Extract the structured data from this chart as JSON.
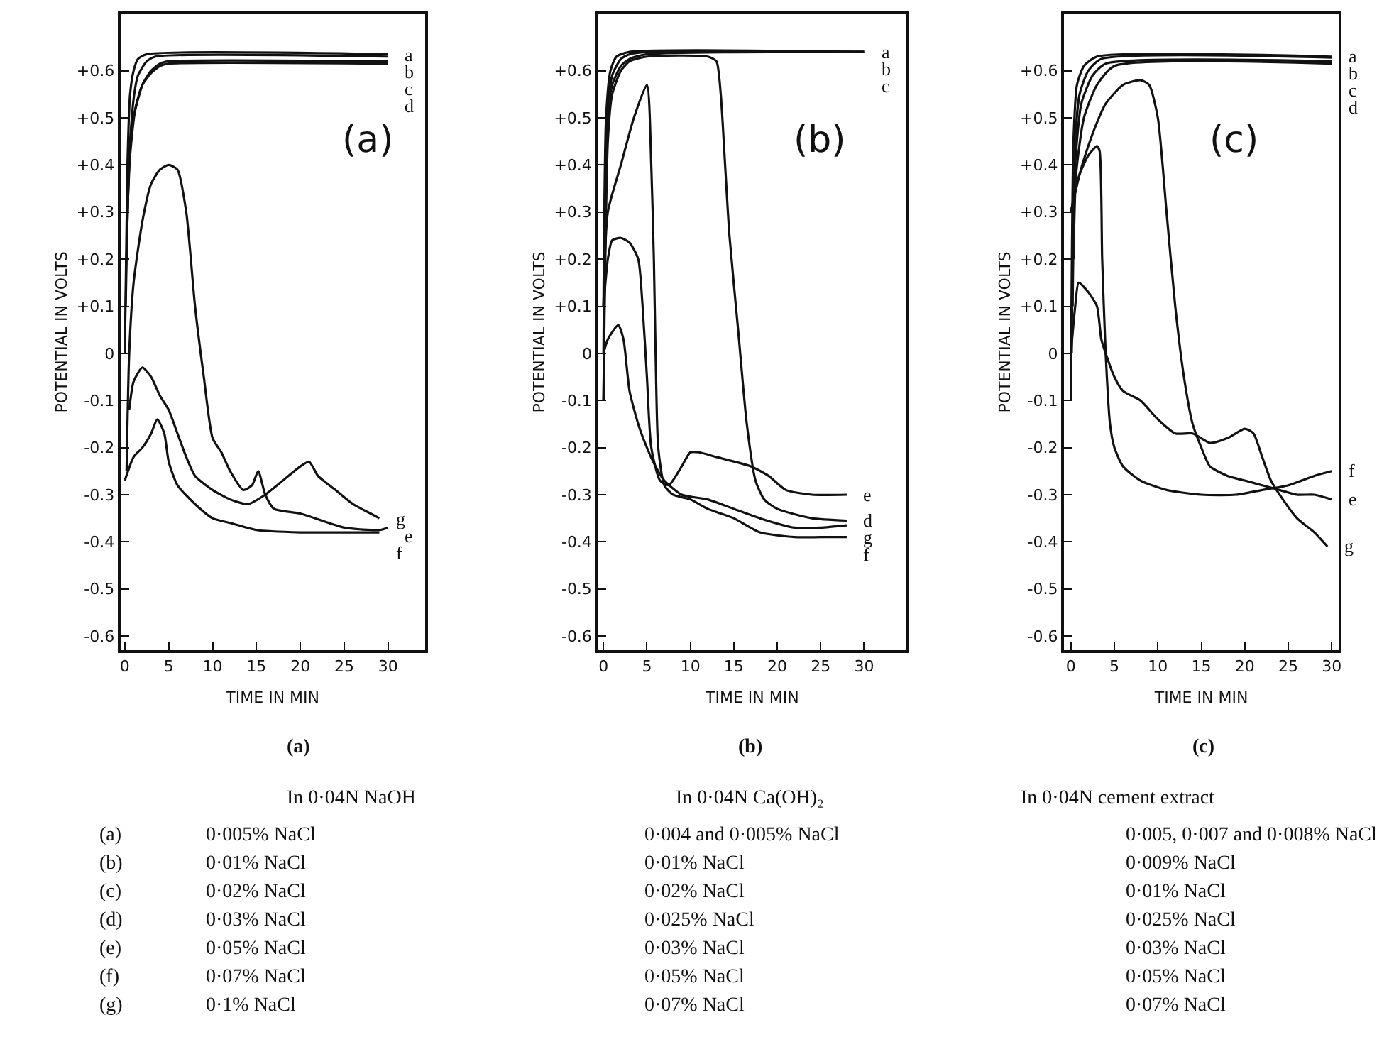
{
  "chart_data": [
    {
      "type": "line",
      "title": "(a)",
      "xlabel": "TIME IN MIN",
      "ylabel": "POTENTIAL IN VOLTS",
      "xlim": [
        -0.5,
        34.2
      ],
      "ylim": [
        -0.63,
        0.72
      ],
      "xticks": [
        0,
        5,
        10,
        15,
        20,
        25,
        30
      ],
      "yticks": [
        {
          "value": 0.6,
          "label": "+0.6"
        },
        {
          "value": 0.5,
          "label": "+0.5"
        },
        {
          "value": 0.4,
          "label": "+0.4"
        },
        {
          "value": 0.3,
          "label": "+0.3"
        },
        {
          "value": 0.2,
          "label": "+0.2"
        },
        {
          "value": 0.1,
          "label": "+0.1"
        },
        0,
        -0.1,
        -0.2,
        -0.3,
        -0.4,
        -0.5,
        -0.6
      ],
      "legend": false,
      "marker": "none",
      "line_style": "solid",
      "series": [
        {
          "name": "a",
          "color": "#111111",
          "x": [
            0,
            0.3,
            0.6,
            1,
            1.5,
            2.5,
            30
          ],
          "values": [
            0.0,
            0.4,
            0.55,
            0.6,
            0.625,
            0.635,
            0.635
          ]
        },
        {
          "name": "b",
          "color": "#111111",
          "x": [
            0.1,
            0.5,
            1,
            1.5,
            2.5,
            3.5,
            30
          ],
          "values": [
            0.1,
            0.42,
            0.54,
            0.59,
            0.62,
            0.63,
            0.63
          ]
        },
        {
          "name": "c",
          "color": "#111111",
          "x": [
            0.2,
            0.5,
            1,
            2,
            3,
            4,
            5,
            30
          ],
          "values": [
            0.2,
            0.4,
            0.5,
            0.57,
            0.6,
            0.615,
            0.62,
            0.62
          ]
        },
        {
          "name": "d",
          "color": "#111111",
          "x": [
            0.3,
            0.6,
            1.2,
            2,
            3,
            4,
            5,
            30
          ],
          "values": [
            0.3,
            0.42,
            0.52,
            0.57,
            0.595,
            0.61,
            0.615,
            0.615
          ]
        },
        {
          "name": "e",
          "color": "#111111",
          "x": [
            0.2,
            0.5,
            1,
            2,
            3,
            4,
            5,
            6,
            7,
            8,
            9,
            10,
            11,
            12,
            13.5,
            14.5,
            15.2,
            16,
            17,
            20,
            25,
            29,
            30
          ],
          "values": [
            -0.25,
            0,
            0.15,
            0.28,
            0.36,
            0.39,
            0.4,
            0.39,
            0.3,
            0.1,
            -0.05,
            -0.18,
            -0.21,
            -0.25,
            -0.29,
            -0.28,
            -0.25,
            -0.3,
            -0.33,
            -0.34,
            -0.37,
            -0.375,
            -0.37
          ]
        },
        {
          "name": "f",
          "color": "#111111",
          "x": [
            0,
            1,
            2,
            3,
            3.7,
            4.5,
            5,
            6,
            8,
            10,
            12,
            15,
            20,
            25,
            29
          ],
          "values": [
            -0.27,
            -0.22,
            -0.2,
            -0.17,
            -0.14,
            -0.17,
            -0.23,
            -0.28,
            -0.32,
            -0.35,
            -0.36,
            -0.375,
            -0.38,
            -0.38,
            -0.38
          ]
        },
        {
          "name": "g",
          "color": "#111111",
          "x": [
            0.5,
            1,
            2,
            3,
            4,
            5,
            6,
            7,
            8,
            10,
            12,
            14,
            16,
            18,
            20,
            21,
            22,
            24,
            26,
            28,
            29
          ],
          "values": [
            -0.12,
            -0.06,
            -0.03,
            -0.05,
            -0.09,
            -0.12,
            -0.17,
            -0.22,
            -0.26,
            -0.29,
            -0.31,
            -0.32,
            -0.3,
            -0.27,
            -0.24,
            -0.23,
            -0.26,
            -0.29,
            -0.32,
            -0.34,
            -0.35
          ]
        }
      ],
      "annotations": [
        "(a)",
        "In 0·04N NaOH",
        "0·005% NaCl",
        "0·01% NaCl",
        "0·02% NaCl",
        "0·03% NaCl",
        "0·05% NaCl",
        "0·07% NaCl",
        "0·1% NaCl",
        "(a)",
        "(b)",
        "(c)",
        "(d)",
        "(e)",
        "(f)",
        "(g)"
      ]
    },
    {
      "type": "line",
      "title": "(b)",
      "xlabel": "TIME IN MIN",
      "ylabel": "POTENTIAL IN VOLTS",
      "xlim": [
        -0.65,
        34.9
      ],
      "ylim": [
        -0.63,
        0.72
      ],
      "xticks": [
        0,
        5,
        10,
        15,
        20,
        25,
        30
      ],
      "yticks": [
        {
          "value": 0.6,
          "label": "+0.6"
        },
        {
          "value": 0.5,
          "label": "+0.5"
        },
        {
          "value": 0.4,
          "label": "+0.4"
        },
        {
          "value": 0.3,
          "label": "+0.3"
        },
        {
          "value": 0.2,
          "label": "+0.2"
        },
        {
          "value": 0.1,
          "label": "+0.1"
        },
        0,
        -0.1,
        -0.2,
        -0.3,
        -0.4,
        -0.5,
        -0.6
      ],
      "legend": false,
      "marker": "none",
      "line_style": "solid",
      "series": [
        {
          "name": "a",
          "color": "#111111",
          "x": [
            0,
            0.3,
            0.8,
            1.5,
            3,
            30
          ],
          "values": [
            0.1,
            0.5,
            0.6,
            0.63,
            0.64,
            0.64
          ]
        },
        {
          "name": "b",
          "color": "#111111",
          "x": [
            0,
            0.4,
            1,
            2,
            3,
            5,
            30
          ],
          "values": [
            0,
            0.5,
            0.59,
            0.625,
            0.635,
            0.64,
            0.64
          ]
        },
        {
          "name": "c",
          "color": "#111111",
          "x": [
            0,
            0.5,
            1,
            2,
            3,
            5,
            30
          ],
          "values": [
            -0.1,
            0.5,
            0.57,
            0.61,
            0.625,
            0.635,
            0.64
          ]
        },
        {
          "name": "d",
          "color": "#111111",
          "x": [
            0,
            0.5,
            1,
            2,
            3,
            5,
            12,
            13,
            13.5,
            14,
            14.5,
            15.5,
            16.5,
            17.5,
            18.5,
            20,
            24,
            28
          ],
          "values": [
            -0.1,
            0.45,
            0.55,
            0.6,
            0.62,
            0.63,
            0.63,
            0.62,
            0.55,
            0.4,
            0.25,
            0.05,
            -0.15,
            -0.27,
            -0.31,
            -0.33,
            -0.35,
            -0.355
          ]
        },
        {
          "name": "e",
          "color": "#111111",
          "x": [
            0,
            0.5,
            1,
            2,
            3,
            4,
            4.5,
            5,
            5.5,
            6.5,
            7.5,
            9,
            10,
            11,
            13,
            17,
            19,
            21,
            24,
            28
          ],
          "values": [
            0.1,
            0.2,
            0.24,
            0.245,
            0.235,
            0.2,
            0.1,
            -0.05,
            -0.2,
            -0.27,
            -0.28,
            -0.24,
            -0.21,
            -0.21,
            -0.22,
            -0.24,
            -0.26,
            -0.29,
            -0.3,
            -0.3
          ]
        },
        {
          "name": "f",
          "color": "#111111",
          "x": [
            0,
            0.5,
            2,
            3.5,
            5,
            5.5,
            5.8,
            6,
            6.3,
            7,
            8,
            10,
            12,
            15,
            18,
            22,
            25,
            28
          ],
          "values": [
            0.1,
            0.3,
            0.4,
            0.5,
            0.57,
            0.4,
            0.2,
            0,
            -0.2,
            -0.28,
            -0.3,
            -0.31,
            -0.33,
            -0.35,
            -0.38,
            -0.39,
            -0.39,
            -0.39
          ]
        },
        {
          "name": "g",
          "color": "#111111",
          "x": [
            0,
            0.5,
            1.7,
            2.3,
            3,
            4,
            5,
            6,
            7,
            9,
            12,
            15,
            18,
            22,
            25,
            28
          ],
          "values": [
            0,
            0.03,
            0.06,
            0.03,
            -0.08,
            -0.15,
            -0.2,
            -0.24,
            -0.27,
            -0.3,
            -0.31,
            -0.33,
            -0.35,
            -0.37,
            -0.37,
            -0.365
          ]
        }
      ],
      "annotations": [
        "(b)",
        "In 0·04N Ca(OH)₂",
        "0·004 and 0·005% NaCl",
        "0·01% NaCl",
        "0·02% NaCl",
        "0·025% NaCl",
        "0·03% NaCl",
        "0·05% NaCl",
        "0·07% NaCl"
      ]
    },
    {
      "type": "line",
      "title": "(c)",
      "xlabel": "TIME IN MIN",
      "ylabel": "POTENTIAL IN VOLTS",
      "xlim": [
        -0.8,
        30.8
      ],
      "ylim": [
        -0.63,
        0.72
      ],
      "xticks": [
        0,
        5,
        10,
        15,
        20,
        25,
        30
      ],
      "yticks": [
        {
          "value": 0.6,
          "label": "+0.6"
        },
        {
          "value": 0.5,
          "label": "+0.5"
        },
        {
          "value": 0.4,
          "label": "+0.4"
        },
        {
          "value": 0.3,
          "label": "+0.3"
        },
        {
          "value": 0.2,
          "label": "+0.2"
        },
        {
          "value": 0.1,
          "label": "+0.1"
        },
        0,
        -0.1,
        -0.2,
        -0.3,
        -0.4,
        -0.5,
        -0.6
      ],
      "legend": false,
      "marker": "none",
      "line_style": "solid",
      "series": [
        {
          "name": "a",
          "color": "#111111",
          "x": [
            0,
            0.3,
            0.7,
            1.5,
            3,
            30
          ],
          "values": [
            -0.1,
            0.45,
            0.57,
            0.61,
            0.63,
            0.63
          ]
        },
        {
          "name": "b",
          "color": "#111111",
          "x": [
            0.1,
            0.4,
            1,
            2,
            3.5,
            30
          ],
          "values": [
            0.0,
            0.42,
            0.55,
            0.6,
            0.625,
            0.628
          ]
        },
        {
          "name": "c",
          "color": "#111111",
          "x": [
            0.2,
            0.5,
            1.2,
            2.5,
            4,
            30
          ],
          "values": [
            0.1,
            0.4,
            0.53,
            0.59,
            0.615,
            0.62
          ]
        },
        {
          "name": "d",
          "color": "#111111",
          "x": [
            0.3,
            0.6,
            1.5,
            3,
            5,
            30
          ],
          "values": [
            0.2,
            0.38,
            0.5,
            0.57,
            0.61,
            0.615
          ]
        },
        {
          "name": "e",
          "color": "#111111",
          "x": [
            0,
            1,
            2,
            3,
            4,
            6,
            8,
            9,
            10,
            11,
            12,
            13,
            14,
            15,
            16,
            18,
            20,
            22,
            24,
            26,
            28,
            30
          ],
          "values": [
            0.3,
            0.38,
            0.44,
            0.49,
            0.53,
            0.57,
            0.58,
            0.57,
            0.5,
            0.3,
            0.1,
            -0.05,
            -0.15,
            -0.2,
            -0.24,
            -0.26,
            -0.27,
            -0.28,
            -0.29,
            -0.3,
            -0.3,
            -0.31
          ]
        },
        {
          "name": "f",
          "color": "#111111",
          "x": [
            0,
            1,
            2,
            3,
            3.3,
            3.6,
            4,
            4.5,
            5,
            6,
            8,
            11,
            15,
            19,
            22,
            25,
            28,
            30
          ],
          "values": [
            0.3,
            0.38,
            0.42,
            0.44,
            0.43,
            0.2,
            0,
            -0.15,
            -0.2,
            -0.24,
            -0.27,
            -0.29,
            -0.3,
            -0.3,
            -0.29,
            -0.28,
            -0.26,
            -0.25
          ]
        },
        {
          "name": "g",
          "color": "#111111",
          "x": [
            0,
            0.5,
            0.9,
            2,
            3,
            3.5,
            4,
            5,
            6,
            8,
            10,
            12,
            14,
            16,
            18,
            20,
            21,
            22,
            23,
            24,
            26,
            28,
            29.5
          ],
          "values": [
            0,
            0.1,
            0.15,
            0.13,
            0.1,
            0.03,
            0,
            -0.05,
            -0.08,
            -0.1,
            -0.14,
            -0.17,
            -0.17,
            -0.19,
            -0.18,
            -0.16,
            -0.17,
            -0.22,
            -0.27,
            -0.3,
            -0.35,
            -0.38,
            -0.41
          ]
        }
      ],
      "annotations": [
        "(c)",
        "In 0·04N cement extract",
        "0·005, 0·007 and 0·008% NaCl",
        "0·009% NaCl",
        "0·01% NaCl",
        "0·025% NaCl",
        "0·03% NaCl",
        "0·05% NaCl",
        "0·07% NaCl"
      ]
    }
  ]
}
